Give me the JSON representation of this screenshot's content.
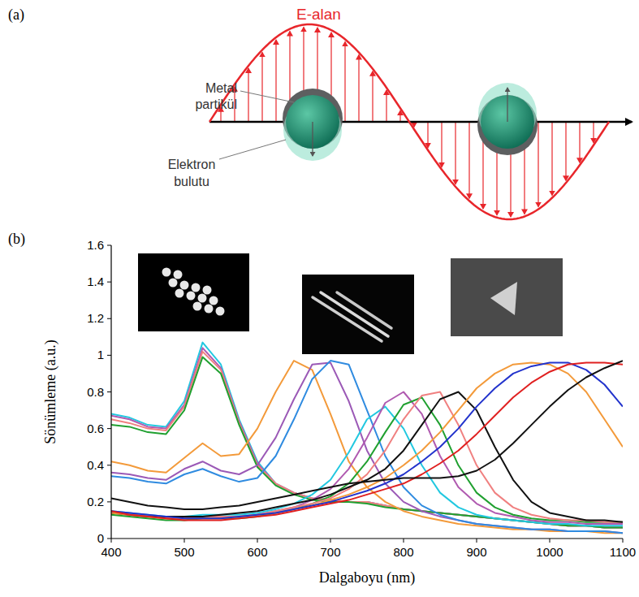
{
  "panel_labels": [
    "(a)",
    "(b)"
  ],
  "diagram": {
    "field_label": "E-alan",
    "particle_label": [
      "Metal",
      "partikül"
    ],
    "cloud_label": [
      "Elektron",
      "bulutu"
    ]
  },
  "chart_data": {
    "type": "line",
    "x_label": "Dalgaboyu (nm)",
    "y_label": "Sönümleme (a.u.)",
    "xlim": [
      400,
      1100
    ],
    "ylim": [
      0,
      1.6
    ],
    "xticks": [
      400,
      500,
      600,
      700,
      800,
      900,
      1000,
      1100
    ],
    "yticks": [
      0,
      0.2,
      0.4,
      0.6,
      0.8,
      1,
      1.2,
      1.4,
      1.6
    ],
    "grid": false,
    "x": [
      400,
      425,
      450,
      475,
      500,
      525,
      550,
      575,
      600,
      625,
      650,
      675,
      700,
      725,
      750,
      775,
      800,
      825,
      850,
      875,
      900,
      925,
      950,
      975,
      1000,
      1025,
      1050,
      1075,
      1100
    ],
    "series": [
      {
        "color": "#22c8e0",
        "values": [
          0.68,
          0.66,
          0.62,
          0.61,
          0.75,
          1.07,
          0.95,
          0.65,
          0.42,
          0.3,
          0.25,
          0.22,
          0.21,
          0.2,
          0.2,
          0.18,
          0.16,
          0.15,
          0.14,
          0.13,
          0.12,
          0.11,
          0.1,
          0.09,
          0.08,
          0.07,
          0.07,
          0.06,
          0.06
        ]
      },
      {
        "color": "#b05ab0",
        "values": [
          0.67,
          0.65,
          0.61,
          0.6,
          0.73,
          1.04,
          0.93,
          0.64,
          0.41,
          0.3,
          0.25,
          0.22,
          0.21,
          0.2,
          0.2,
          0.18,
          0.16,
          0.15,
          0.14,
          0.13,
          0.12,
          0.11,
          0.1,
          0.09,
          0.08,
          0.07,
          0.07,
          0.06,
          0.06
        ]
      },
      {
        "color": "#f08080",
        "values": [
          0.65,
          0.63,
          0.6,
          0.59,
          0.72,
          1.02,
          0.92,
          0.63,
          0.4,
          0.3,
          0.25,
          0.22,
          0.21,
          0.2,
          0.2,
          0.18,
          0.16,
          0.15,
          0.14,
          0.13,
          0.12,
          0.11,
          0.1,
          0.09,
          0.08,
          0.07,
          0.07,
          0.06,
          0.06
        ]
      },
      {
        "color": "#20a030",
        "values": [
          0.62,
          0.61,
          0.58,
          0.57,
          0.7,
          0.99,
          0.9,
          0.62,
          0.39,
          0.29,
          0.24,
          0.21,
          0.2,
          0.2,
          0.19,
          0.17,
          0.16,
          0.15,
          0.14,
          0.13,
          0.12,
          0.11,
          0.1,
          0.09,
          0.08,
          0.07,
          0.07,
          0.06,
          0.06
        ]
      },
      {
        "color": "#f39a3a",
        "values": [
          0.42,
          0.4,
          0.37,
          0.36,
          0.44,
          0.52,
          0.45,
          0.46,
          0.6,
          0.8,
          0.97,
          0.92,
          0.68,
          0.42,
          0.28,
          0.2,
          0.15,
          0.12,
          0.1,
          0.08,
          0.07,
          0.06,
          0.05,
          0.05,
          0.04,
          0.04,
          0.04,
          0.03,
          0.03
        ]
      },
      {
        "color": "#9b59b6",
        "values": [
          0.36,
          0.35,
          0.33,
          0.32,
          0.38,
          0.42,
          0.37,
          0.35,
          0.4,
          0.55,
          0.76,
          0.95,
          0.96,
          0.75,
          0.48,
          0.3,
          0.2,
          0.15,
          0.12,
          0.1,
          0.08,
          0.07,
          0.06,
          0.05,
          0.05,
          0.04,
          0.04,
          0.04,
          0.03
        ]
      },
      {
        "color": "#2f8be0",
        "values": [
          0.34,
          0.33,
          0.31,
          0.3,
          0.35,
          0.38,
          0.34,
          0.31,
          0.33,
          0.45,
          0.65,
          0.87,
          0.97,
          0.95,
          0.7,
          0.45,
          0.28,
          0.18,
          0.13,
          0.1,
          0.08,
          0.07,
          0.06,
          0.05,
          0.05,
          0.04,
          0.04,
          0.04,
          0.03
        ]
      },
      {
        "color": "#22c8e0",
        "values": [
          0.15,
          0.14,
          0.13,
          0.12,
          0.12,
          0.13,
          0.13,
          0.13,
          0.14,
          0.16,
          0.19,
          0.24,
          0.32,
          0.47,
          0.65,
          0.72,
          0.6,
          0.4,
          0.25,
          0.17,
          0.13,
          0.11,
          0.1,
          0.09,
          0.08,
          0.08,
          0.07,
          0.07,
          0.07
        ]
      },
      {
        "color": "#b05ab0",
        "values": [
          0.14,
          0.13,
          0.12,
          0.11,
          0.11,
          0.12,
          0.12,
          0.12,
          0.13,
          0.15,
          0.17,
          0.21,
          0.27,
          0.38,
          0.55,
          0.74,
          0.8,
          0.68,
          0.45,
          0.28,
          0.19,
          0.14,
          0.12,
          0.1,
          0.09,
          0.09,
          0.08,
          0.08,
          0.08
        ]
      },
      {
        "color": "#20a030",
        "values": [
          0.13,
          0.12,
          0.11,
          0.1,
          0.1,
          0.11,
          0.11,
          0.11,
          0.12,
          0.14,
          0.16,
          0.19,
          0.23,
          0.3,
          0.42,
          0.58,
          0.73,
          0.77,
          0.62,
          0.4,
          0.25,
          0.17,
          0.13,
          0.11,
          0.1,
          0.1,
          0.09,
          0.09,
          0.09
        ]
      },
      {
        "color": "#f08080",
        "values": [
          0.14,
          0.13,
          0.12,
          0.11,
          0.11,
          0.12,
          0.12,
          0.12,
          0.13,
          0.15,
          0.17,
          0.19,
          0.22,
          0.27,
          0.35,
          0.48,
          0.65,
          0.78,
          0.8,
          0.62,
          0.4,
          0.25,
          0.17,
          0.13,
          0.11,
          0.1,
          0.1,
          0.09,
          0.09
        ]
      },
      {
        "color": "#111111",
        "values": [
          0.14,
          0.13,
          0.12,
          0.12,
          0.12,
          0.12,
          0.13,
          0.14,
          0.15,
          0.17,
          0.19,
          0.21,
          0.24,
          0.28,
          0.32,
          0.38,
          0.48,
          0.62,
          0.76,
          0.8,
          0.7,
          0.5,
          0.32,
          0.2,
          0.14,
          0.12,
          0.1,
          0.1,
          0.09
        ]
      },
      {
        "color": "#f39a3a",
        "values": [
          0.14,
          0.13,
          0.12,
          0.11,
          0.11,
          0.11,
          0.11,
          0.12,
          0.13,
          0.14,
          0.16,
          0.18,
          0.21,
          0.24,
          0.28,
          0.33,
          0.4,
          0.48,
          0.58,
          0.7,
          0.82,
          0.9,
          0.95,
          0.96,
          0.95,
          0.9,
          0.8,
          0.65,
          0.5
        ]
      },
      {
        "color": "#2233cc",
        "values": [
          0.15,
          0.14,
          0.13,
          0.12,
          0.11,
          0.11,
          0.11,
          0.12,
          0.13,
          0.14,
          0.16,
          0.18,
          0.2,
          0.23,
          0.26,
          0.3,
          0.35,
          0.42,
          0.5,
          0.6,
          0.72,
          0.82,
          0.9,
          0.94,
          0.96,
          0.96,
          0.92,
          0.84,
          0.72
        ]
      },
      {
        "color": "#e02020",
        "values": [
          0.15,
          0.13,
          0.12,
          0.11,
          0.1,
          0.1,
          0.1,
          0.11,
          0.12,
          0.13,
          0.15,
          0.17,
          0.19,
          0.21,
          0.24,
          0.27,
          0.3,
          0.35,
          0.41,
          0.48,
          0.57,
          0.67,
          0.77,
          0.85,
          0.91,
          0.95,
          0.96,
          0.96,
          0.95
        ]
      },
      {
        "color": "#111111",
        "values": [
          0.22,
          0.2,
          0.18,
          0.17,
          0.16,
          0.16,
          0.17,
          0.18,
          0.2,
          0.22,
          0.24,
          0.26,
          0.28,
          0.3,
          0.31,
          0.32,
          0.33,
          0.33,
          0.33,
          0.34,
          0.37,
          0.43,
          0.52,
          0.62,
          0.72,
          0.81,
          0.88,
          0.93,
          0.97
        ]
      }
    ]
  }
}
